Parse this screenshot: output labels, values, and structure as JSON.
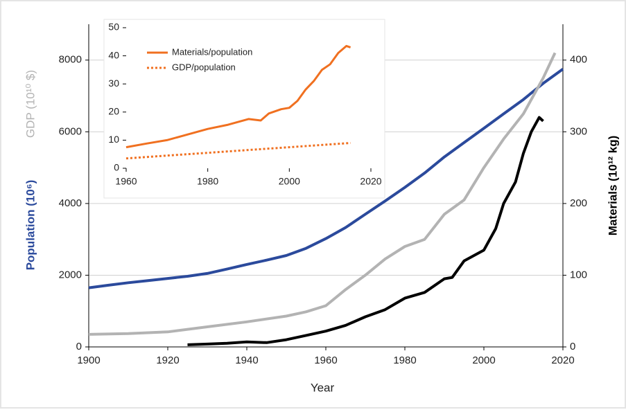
{
  "chart_data": [
    {
      "type": "line",
      "xlabel": "Year",
      "xlim": [
        1900,
        2020
      ],
      "xticks": [
        1900,
        1920,
        1940,
        1960,
        1980,
        2000,
        2020
      ],
      "ylim": [
        0,
        9000
      ],
      "yticks": [
        0,
        2000,
        4000,
        6000,
        8000
      ],
      "y2lim": [
        0,
        450
      ],
      "y2ticks": [
        0,
        100,
        200,
        300,
        400
      ],
      "grid": true,
      "series": [
        {
          "name": "Population (10⁶)",
          "color": "#2b4a9c",
          "x": [
            1900,
            1905,
            1910,
            1915,
            1920,
            1925,
            1930,
            1935,
            1940,
            1945,
            1950,
            1955,
            1960,
            1965,
            1970,
            1975,
            1980,
            1985,
            1990,
            1995,
            2000,
            2005,
            2010,
            2015,
            2020
          ],
          "values": [
            1650,
            1720,
            1790,
            1850,
            1910,
            1970,
            2050,
            2170,
            2300,
            2420,
            2550,
            2750,
            3020,
            3330,
            3700,
            4070,
            4450,
            4850,
            5300,
            5700,
            6100,
            6500,
            6900,
            7350,
            7750
          ]
        },
        {
          "name": "GDP (10¹⁰ $)",
          "color": "#b3b3b3",
          "x": [
            1900,
            1910,
            1920,
            1930,
            1940,
            1950,
            1955,
            1960,
            1965,
            1970,
            1975,
            1980,
            1985,
            1990,
            1995,
            2000,
            2005,
            2010,
            2015,
            2018
          ],
          "values": [
            350,
            370,
            420,
            560,
            700,
            860,
            980,
            1150,
            1600,
            2000,
            2450,
            2800,
            3000,
            3700,
            4100,
            5000,
            5800,
            6500,
            7500,
            8200
          ]
        },
        {
          "name": "Materials (10¹² kg)",
          "color": "#000000",
          "axis": "y2",
          "x": [
            1925,
            1930,
            1935,
            1940,
            1945,
            1950,
            1955,
            1960,
            1965,
            1970,
            1975,
            1980,
            1985,
            1990,
            1992,
            1995,
            2000,
            2003,
            2005,
            2008,
            2010,
            2012,
            2014,
            2015
          ],
          "values": [
            3,
            4,
            5,
            7,
            6,
            10,
            16,
            22,
            30,
            42,
            52,
            68,
            76,
            95,
            97,
            120,
            135,
            165,
            200,
            230,
            270,
            300,
            320,
            315
          ]
        }
      ]
    },
    {
      "type": "line",
      "xlim": [
        1960,
        2020
      ],
      "xticks": [
        1960,
        1980,
        2000,
        2020
      ],
      "ylim": [
        0,
        50
      ],
      "yticks": [
        0,
        10,
        20,
        30,
        40,
        50
      ],
      "legend": "upper left",
      "series": [
        {
          "name": "Materials/population",
          "color": "#f07020",
          "style": "solid",
          "x": [
            1960,
            1965,
            1970,
            1975,
            1980,
            1985,
            1990,
            1993,
            1995,
            1998,
            2000,
            2002,
            2004,
            2006,
            2008,
            2010,
            2012,
            2014,
            2015
          ],
          "values": [
            7.5,
            8.8,
            10,
            12,
            14,
            15.5,
            17.5,
            17,
            19.5,
            21,
            21.5,
            24,
            28,
            31,
            35,
            37,
            41,
            43.5,
            43
          ]
        },
        {
          "name": "GDP/population",
          "color": "#f07020",
          "style": "dotted",
          "x": [
            1960,
            1970,
            1980,
            1990,
            2000,
            2010,
            2015
          ],
          "values": [
            3.5,
            4.5,
            5.5,
            6.5,
            7.5,
            8.5,
            9
          ]
        }
      ]
    }
  ]
}
